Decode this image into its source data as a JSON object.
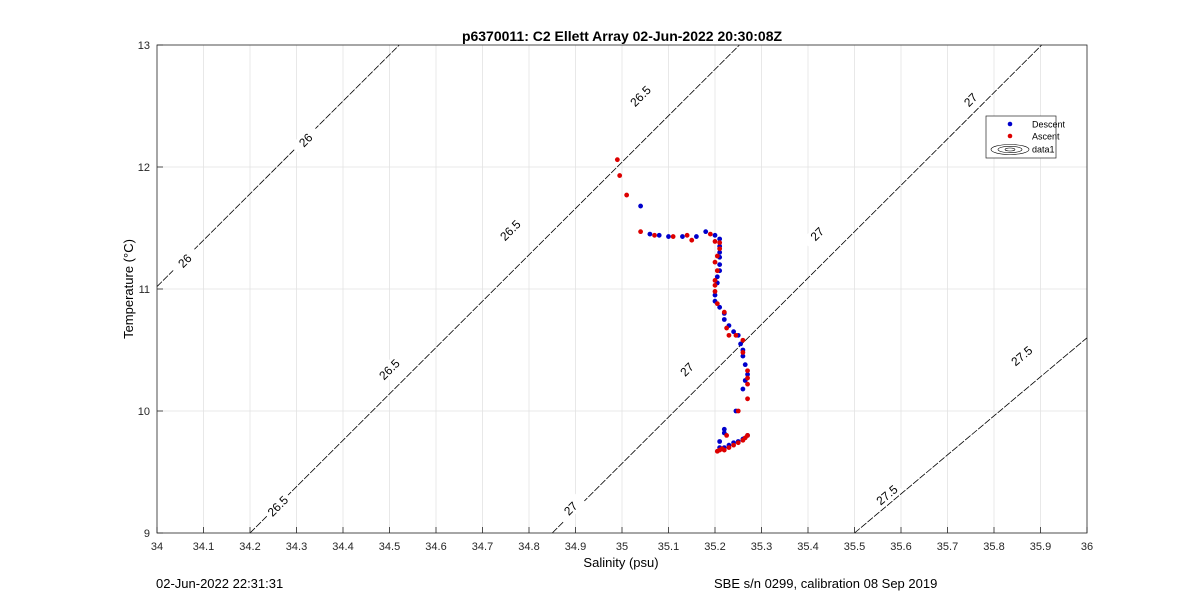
{
  "chart_data": {
    "type": "scatter",
    "title": "p6370011: C2 Ellett Array 02-Jun-2022 20:30:08Z",
    "xlabel": "Salinity (psu)",
    "ylabel": "Temperature (°C)",
    "xlim": [
      34,
      36
    ],
    "ylim": [
      9,
      13
    ],
    "xticks": [
      "34",
      "34.1",
      "34.2",
      "34.3",
      "34.4",
      "34.5",
      "34.6",
      "34.7",
      "34.8",
      "34.9",
      "35",
      "35.1",
      "35.2",
      "35.3",
      "35.4",
      "35.5",
      "35.6",
      "35.7",
      "35.8",
      "35.9",
      "36"
    ],
    "yticks": [
      "9",
      "10",
      "11",
      "12",
      "13"
    ],
    "grid": true,
    "legend_position": "top-right",
    "legend": [
      "Descent",
      "Ascent",
      "data1"
    ],
    "series": [
      {
        "name": "Descent",
        "color": "#0000cc",
        "points": [
          [
            35.04,
            11.68
          ],
          [
            35.06,
            11.45
          ],
          [
            35.08,
            11.44
          ],
          [
            35.1,
            11.43
          ],
          [
            35.13,
            11.43
          ],
          [
            35.16,
            11.43
          ],
          [
            35.18,
            11.47
          ],
          [
            35.2,
            11.44
          ],
          [
            35.21,
            11.41
          ],
          [
            35.21,
            11.35
          ],
          [
            35.21,
            11.3
          ],
          [
            35.21,
            11.26
          ],
          [
            35.21,
            11.2
          ],
          [
            35.21,
            11.15
          ],
          [
            35.205,
            11.1
          ],
          [
            35.205,
            11.05
          ],
          [
            35.2,
            10.95
          ],
          [
            35.2,
            10.9
          ],
          [
            35.21,
            10.85
          ],
          [
            35.22,
            10.8
          ],
          [
            35.22,
            10.75
          ],
          [
            35.23,
            10.7
          ],
          [
            35.24,
            10.65
          ],
          [
            35.25,
            10.62
          ],
          [
            35.255,
            10.55
          ],
          [
            35.26,
            10.5
          ],
          [
            35.26,
            10.45
          ],
          [
            35.265,
            10.38
          ],
          [
            35.27,
            10.3
          ],
          [
            35.265,
            10.25
          ],
          [
            35.26,
            10.18
          ],
          [
            35.245,
            10.0
          ],
          [
            35.22,
            9.85
          ],
          [
            35.22,
            9.82
          ],
          [
            35.21,
            9.75
          ],
          [
            35.21,
            9.7
          ],
          [
            35.22,
            9.7
          ],
          [
            35.23,
            9.72
          ],
          [
            35.24,
            9.74
          ],
          [
            35.25,
            9.75
          ],
          [
            35.26,
            9.77
          ],
          [
            35.27,
            9.8
          ]
        ]
      },
      {
        "name": "Ascent",
        "color": "#dd0000",
        "points": [
          [
            34.99,
            12.06
          ],
          [
            34.995,
            11.93
          ],
          [
            35.01,
            11.77
          ],
          [
            35.04,
            11.47
          ],
          [
            35.07,
            11.44
          ],
          [
            35.11,
            11.43
          ],
          [
            35.14,
            11.44
          ],
          [
            35.15,
            11.4
          ],
          [
            35.19,
            11.45
          ],
          [
            35.2,
            11.39
          ],
          [
            35.21,
            11.38
          ],
          [
            35.21,
            11.33
          ],
          [
            35.205,
            11.27
          ],
          [
            35.2,
            11.22
          ],
          [
            35.205,
            11.15
          ],
          [
            35.2,
            11.07
          ],
          [
            35.2,
            11.03
          ],
          [
            35.2,
            10.98
          ],
          [
            35.205,
            10.88
          ],
          [
            35.22,
            10.81
          ],
          [
            35.225,
            10.68
          ],
          [
            35.23,
            10.62
          ],
          [
            35.245,
            10.62
          ],
          [
            35.26,
            10.58
          ],
          [
            35.26,
            10.48
          ],
          [
            35.27,
            10.33
          ],
          [
            35.27,
            10.27
          ],
          [
            35.27,
            10.22
          ],
          [
            35.27,
            10.1
          ],
          [
            35.25,
            10.0
          ],
          [
            35.225,
            9.8
          ],
          [
            35.21,
            9.68
          ],
          [
            35.22,
            9.68
          ],
          [
            35.23,
            9.7
          ],
          [
            35.24,
            9.72
          ],
          [
            35.25,
            9.74
          ],
          [
            35.26,
            9.76
          ],
          [
            35.265,
            9.78
          ],
          [
            35.27,
            9.8
          ],
          [
            35.205,
            9.67
          ],
          [
            35.215,
            9.69
          ]
        ]
      }
    ],
    "isopycnals": [
      {
        "label": "26",
        "s0": 34,
        "t0": 11.02,
        "slope": 3.8,
        "label_positions": [
          [
            34.06,
            11.23
          ],
          [
            34.32,
            12.22
          ]
        ]
      },
      {
        "label": "26.5",
        "s0": 34.2,
        "t0": 9,
        "slope": 3.8,
        "label_positions": [
          [
            34.26,
            9.22
          ],
          [
            34.5,
            10.34
          ],
          [
            34.76,
            11.48
          ],
          [
            35.04,
            12.58
          ]
        ]
      },
      {
        "label": "27",
        "s0": 34.85,
        "t0": 9,
        "slope": 3.8,
        "label_positions": [
          [
            34.89,
            9.2
          ],
          [
            35.14,
            10.34
          ],
          [
            35.42,
            11.45
          ],
          [
            35.75,
            12.55
          ]
        ]
      },
      {
        "label": "27.5",
        "s0": 35.5,
        "t0": 9,
        "slope": 3.2,
        "label_positions": [
          [
            35.57,
            9.31
          ],
          [
            35.86,
            10.45
          ]
        ]
      }
    ]
  },
  "footer": {
    "timestamp": "02-Jun-2022 22:31:31",
    "calibration": "SBE s/n 0299, calibration 08 Sep 2019"
  }
}
